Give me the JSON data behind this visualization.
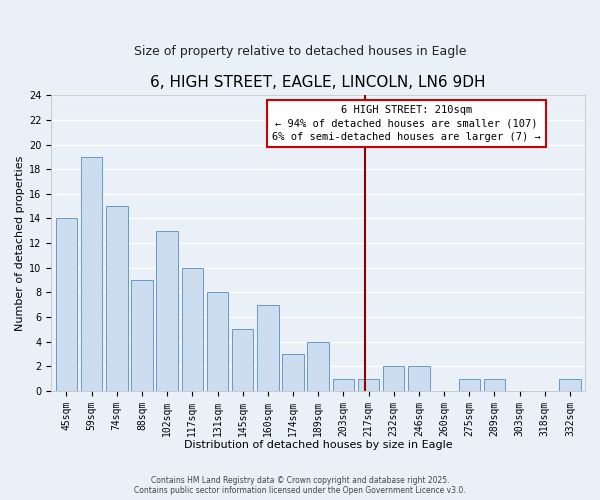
{
  "title": "6, HIGH STREET, EAGLE, LINCOLN, LN6 9DH",
  "subtitle": "Size of property relative to detached houses in Eagle",
  "xlabel": "Distribution of detached houses by size in Eagle",
  "ylabel": "Number of detached properties",
  "categories": [
    "45sqm",
    "59sqm",
    "74sqm",
    "88sqm",
    "102sqm",
    "117sqm",
    "131sqm",
    "145sqm",
    "160sqm",
    "174sqm",
    "189sqm",
    "203sqm",
    "217sqm",
    "232sqm",
    "246sqm",
    "260sqm",
    "275sqm",
    "289sqm",
    "303sqm",
    "318sqm",
    "332sqm"
  ],
  "values": [
    14,
    19,
    15,
    9,
    13,
    10,
    8,
    5,
    7,
    3,
    4,
    1,
    1,
    2,
    2,
    0,
    1,
    1,
    0,
    0,
    1
  ],
  "bar_color": "#ccddf0",
  "bar_edge_color": "#6699cc",
  "ylim": [
    0,
    24
  ],
  "yticks": [
    0,
    2,
    4,
    6,
    8,
    10,
    12,
    14,
    16,
    18,
    20,
    22,
    24
  ],
  "vline_color": "#8b0000",
  "annotation_title": "6 HIGH STREET: 210sqm",
  "annotation_line1": "← 94% of detached houses are smaller (107)",
  "annotation_line2": "6% of semi-detached houses are larger (7) →",
  "annotation_box_color": "#ffffff",
  "annotation_box_edge": "#cc0000",
  "footer1": "Contains HM Land Registry data © Crown copyright and database right 2025.",
  "footer2": "Contains public sector information licensed under the Open Government Licence v3.0.",
  "background_color": "#eaf0f8",
  "grid_color": "#ffffff",
  "title_fontsize": 11,
  "subtitle_fontsize": 9,
  "tick_fontsize": 7,
  "axis_label_fontsize": 8
}
